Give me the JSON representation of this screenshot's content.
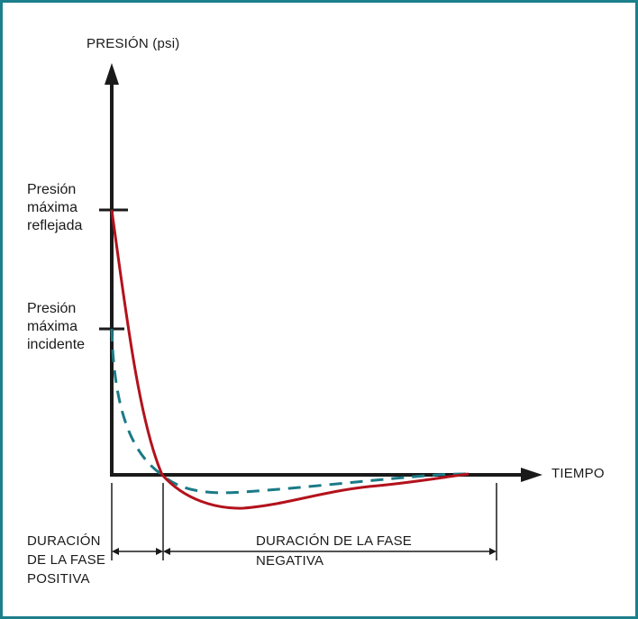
{
  "y_axis_label": "PRESIÓN (psi)",
  "x_axis_label": "TIEMPO",
  "reflected_peak_label": [
    "Presión",
    "máxima",
    "reflejada"
  ],
  "incident_peak_label": [
    "Presión",
    "máxima",
    "incidente"
  ],
  "positive_phase_label": [
    "DURACIÓN",
    "DE LA FASE",
    "POSITIVA"
  ],
  "negative_phase_label": [
    "DURACIÓN DE LA FASE",
    "NEGATIVA"
  ],
  "colors": {
    "border": "#1c7f8c",
    "reflected_curve": "#b3121c",
    "incident_curve": "#1a7a86",
    "axes": "#1a1a1a"
  }
}
